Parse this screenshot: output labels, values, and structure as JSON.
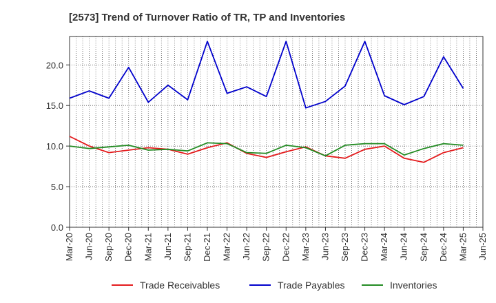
{
  "chart_data": {
    "type": "line",
    "title": "[2573]  Trend of Turnover Ratio of TR, TP and Inventories",
    "xlabel": "",
    "ylabel": "",
    "x": [
      "Mar-20",
      "Jun-20",
      "Sep-20",
      "Dec-20",
      "Mar-21",
      "Jun-21",
      "Sep-21",
      "Dec-21",
      "Mar-22",
      "Jun-22",
      "Sep-22",
      "Dec-22",
      "Mar-23",
      "Jun-23",
      "Sep-23",
      "Dec-23",
      "Mar-24",
      "Jun-24",
      "Sep-24",
      "Dec-24",
      "Mar-25",
      "Jun-25"
    ],
    "x_tick_labels": [
      "Mar-20",
      "Jun-20",
      "Sep-20",
      "Dec-20",
      "Mar-21",
      "Jun-21",
      "Sep-21",
      "Dec-21",
      "Mar-22",
      "Jun-22",
      "Sep-22",
      "Dec-22",
      "Mar-23",
      "Jun-23",
      "Sep-23",
      "Dec-23",
      "Mar-24",
      "Jun-24",
      "Sep-24",
      "Dec-24",
      "Mar-25",
      "Jun-25"
    ],
    "ylim": [
      0,
      23.5
    ],
    "y_ticks": [
      0.0,
      5.0,
      10.0,
      15.0,
      20.0
    ],
    "y_tick_labels": [
      "0.0",
      "5.0",
      "10.0",
      "15.0",
      "20.0"
    ],
    "grid": true,
    "legend_position": "bottom",
    "series": [
      {
        "name": "Trade Receivables",
        "color": "#e41a1c",
        "values": [
          11.2,
          10.0,
          9.2,
          9.5,
          9.8,
          9.6,
          9.0,
          9.8,
          10.4,
          9.1,
          8.6,
          9.3,
          9.9,
          8.8,
          8.5,
          9.6,
          10.0,
          8.5,
          8.0,
          9.2,
          9.8,
          null
        ]
      },
      {
        "name": "Trade Payables",
        "color": "#0000cc",
        "values": [
          15.9,
          16.8,
          15.9,
          19.7,
          15.4,
          17.5,
          15.7,
          22.9,
          16.5,
          17.3,
          16.1,
          22.9,
          14.7,
          15.5,
          17.4,
          22.9,
          16.2,
          15.1,
          16.1,
          21.0,
          17.1,
          null
        ]
      },
      {
        "name": "Inventories",
        "color": "#228b22",
        "values": [
          10.0,
          9.7,
          9.9,
          10.1,
          9.5,
          9.6,
          9.4,
          10.4,
          10.3,
          9.2,
          9.1,
          10.1,
          9.8,
          8.8,
          10.1,
          10.3,
          10.3,
          8.9,
          9.7,
          10.3,
          10.1,
          null
        ]
      }
    ]
  }
}
